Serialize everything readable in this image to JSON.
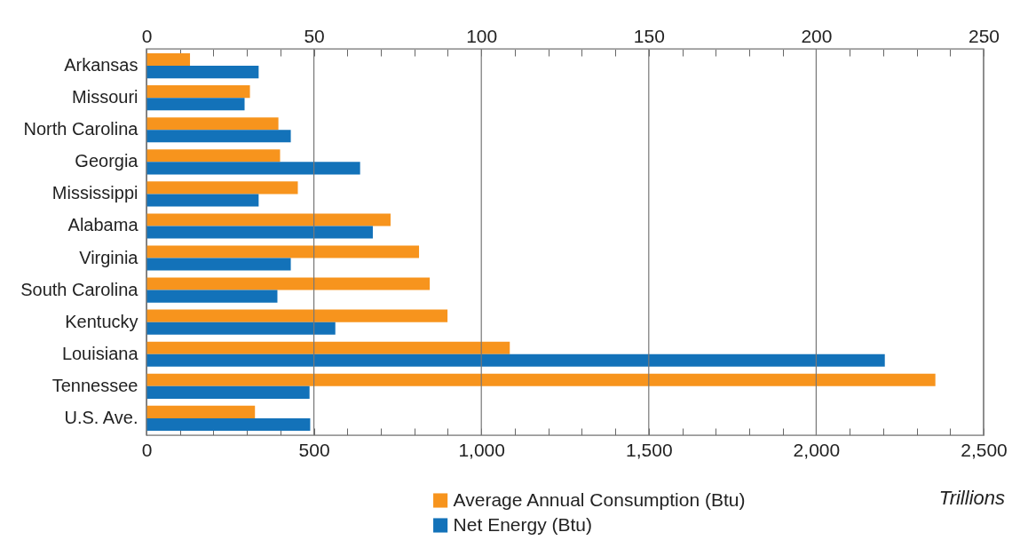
{
  "chart_data": {
    "type": "bar",
    "orientation": "horizontal",
    "categories": [
      "Arkansas",
      "Missouri",
      "North Carolina",
      "Georgia",
      "Mississippi",
      "Alabama",
      "Virginia",
      "South Carolina",
      "Kentucky",
      "Louisiana",
      "Tennessee",
      "U.S. Ave."
    ],
    "series": [
      {
        "name": "Average Annual Consumption (Btu)",
        "color": "#f7941d",
        "values": [
          130,
          309,
          394,
          399,
          452,
          729,
          814,
          846,
          899,
          1085,
          2356,
          324
        ]
      },
      {
        "name": "Net Energy (Btu)",
        "color": "#1372b9",
        "values": [
          335,
          293,
          431,
          638,
          335,
          676,
          431,
          391,
          564,
          2205,
          487,
          489
        ]
      }
    ],
    "xlim": [
      0,
      2500
    ],
    "xticks": [
      0,
      {
        "value": 100,
        "label": null
      },
      {
        "value": 200,
        "label": null
      },
      {
        "value": 300,
        "label": null
      },
      {
        "value": 400,
        "label": null
      },
      500,
      {
        "value": 600,
        "label": null
      },
      {
        "value": 700,
        "label": null
      },
      {
        "value": 800,
        "label": null
      },
      {
        "value": 900,
        "label": null
      },
      {
        "value": 1000,
        "label": "1,000"
      },
      {
        "value": 1100,
        "label": null
      },
      {
        "value": 1200,
        "label": null
      },
      {
        "value": 1300,
        "label": null
      },
      {
        "value": 1400,
        "label": null
      },
      {
        "value": 1500,
        "label": "1,500"
      },
      {
        "value": 1600,
        "label": null
      },
      {
        "value": 1700,
        "label": null
      },
      {
        "value": 1800,
        "label": null
      },
      {
        "value": 1900,
        "label": null
      },
      {
        "value": 2000,
        "label": "2,000"
      },
      {
        "value": 2100,
        "label": null
      },
      {
        "value": 2200,
        "label": null
      },
      {
        "value": 2300,
        "label": null
      },
      {
        "value": 2400,
        "label": null
      },
      {
        "value": 2500,
        "label": "2,500"
      }
    ],
    "x2lim": [
      0,
      250
    ],
    "x2ticks": [
      0,
      {
        "value": 10,
        "label": null
      },
      {
        "value": 20,
        "label": null
      },
      {
        "value": 30,
        "label": null
      },
      {
        "value": 40,
        "label": null
      },
      50,
      {
        "value": 60,
        "label": null
      },
      {
        "value": 70,
        "label": null
      },
      {
        "value": 80,
        "label": null
      },
      {
        "value": 90,
        "label": null
      },
      100,
      {
        "value": 110,
        "label": null
      },
      {
        "value": 120,
        "label": null
      },
      {
        "value": 130,
        "label": null
      },
      {
        "value": 140,
        "label": null
      },
      150,
      {
        "value": 160,
        "label": null
      },
      {
        "value": 170,
        "label": null
      },
      {
        "value": 180,
        "label": null
      },
      {
        "value": 190,
        "label": null
      },
      200,
      {
        "value": 210,
        "label": null
      },
      {
        "value": 220,
        "label": null
      },
      {
        "value": 230,
        "label": null
      },
      {
        "value": 240,
        "label": null
      },
      250
    ],
    "grid": "x",
    "legend": "bottom",
    "annotations": [
      "Trillions"
    ]
  }
}
